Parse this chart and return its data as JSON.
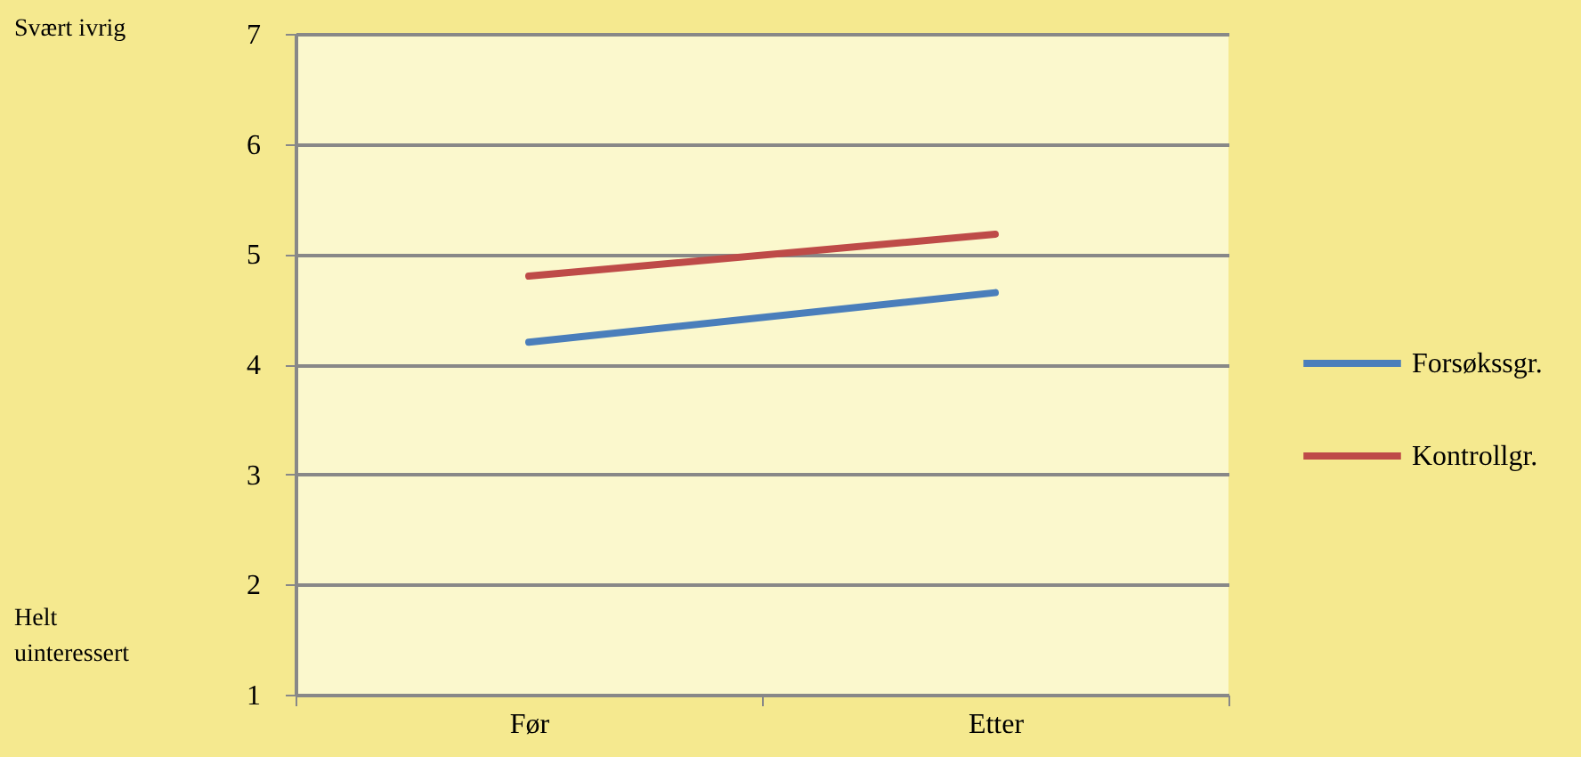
{
  "chart_data": {
    "type": "line",
    "categories": [
      "Før",
      "Etter"
    ],
    "series": [
      {
        "name": "Forsøkssgr.",
        "color": "#4a7ebb",
        "values": [
          4.2,
          4.65
        ]
      },
      {
        "name": "Kontrollgr.",
        "color": "#be4b48",
        "values": [
          4.8,
          5.18
        ]
      }
    ],
    "ylim": [
      1,
      7
    ],
    "yticks": [
      1,
      2,
      3,
      4,
      5,
      6,
      7
    ],
    "grid": "y",
    "legend": "right",
    "marker": "none",
    "line_style": "solid",
    "annotations": [
      "Svært ivrig",
      "Helt uinteressert"
    ]
  }
}
